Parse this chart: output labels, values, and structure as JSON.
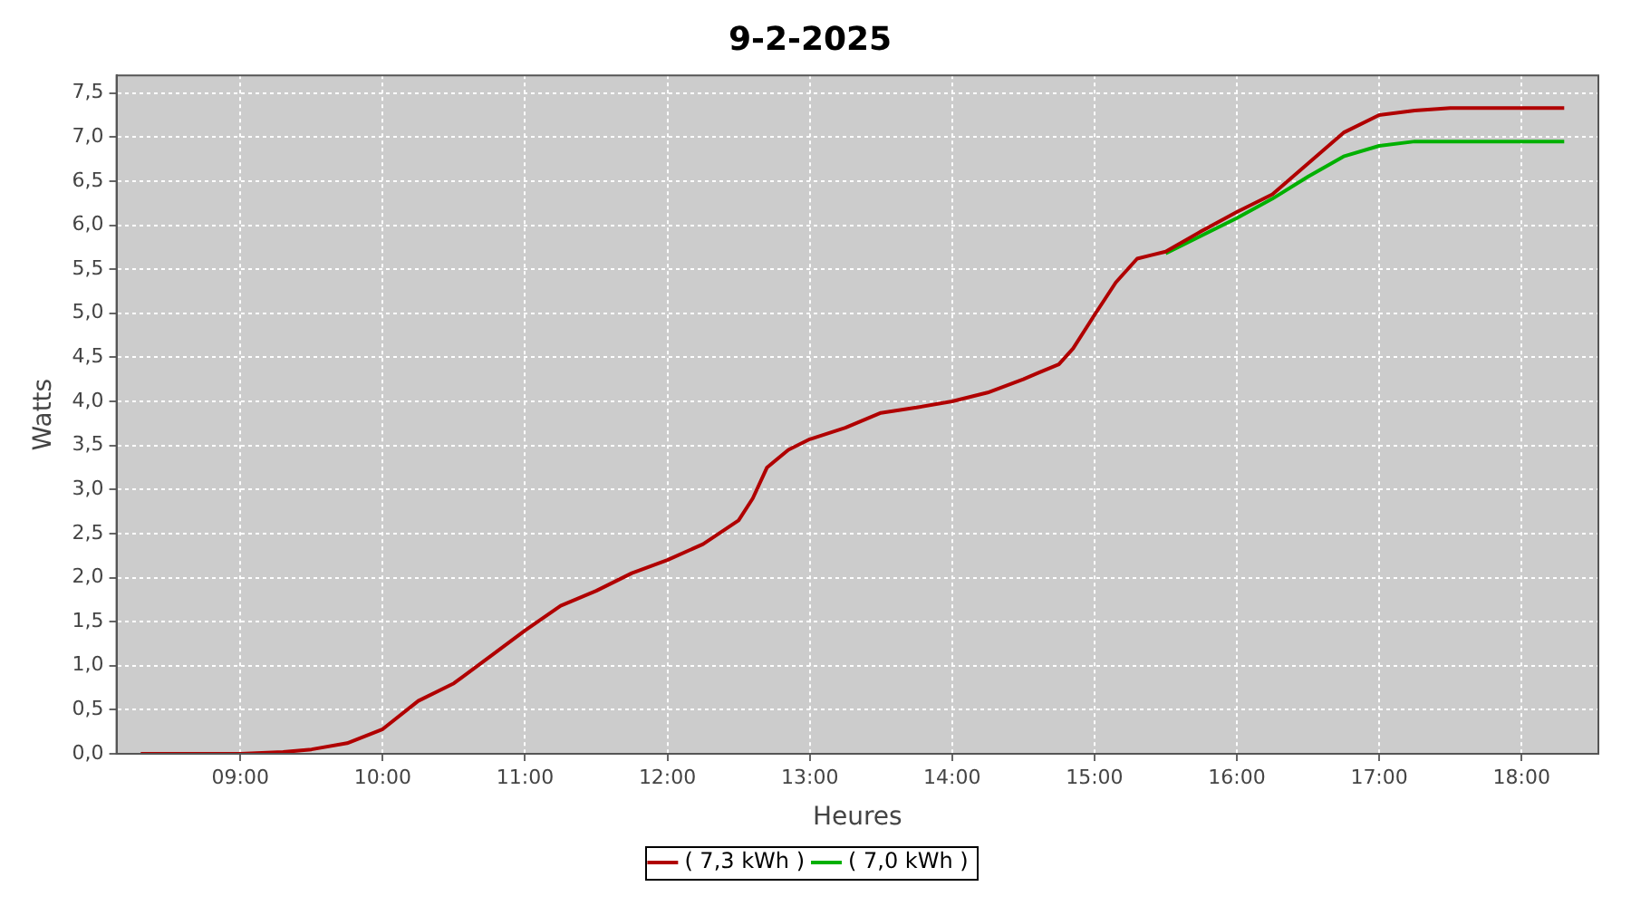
{
  "chart_data": {
    "type": "line",
    "title": "9-2-2025",
    "xlabel": "Heures",
    "ylabel": "Watts",
    "xlim": [
      8.13,
      18.54
    ],
    "ylim": [
      0,
      7.7
    ],
    "xticks": [
      {
        "value": 9,
        "label": "09:00"
      },
      {
        "value": 10,
        "label": "10:00"
      },
      {
        "value": 11,
        "label": "11:00"
      },
      {
        "value": 12,
        "label": "12:00"
      },
      {
        "value": 13,
        "label": "13:00"
      },
      {
        "value": 14,
        "label": "14:00"
      },
      {
        "value": 15,
        "label": "15:00"
      },
      {
        "value": 16,
        "label": "16:00"
      },
      {
        "value": 17,
        "label": "17:00"
      },
      {
        "value": 18,
        "label": "18:00"
      }
    ],
    "yticks": [
      {
        "value": 0,
        "label": "0,0"
      },
      {
        "value": 0.5,
        "label": "0,5"
      },
      {
        "value": 1,
        "label": "1,0"
      },
      {
        "value": 1.5,
        "label": "1,5"
      },
      {
        "value": 2,
        "label": "2,0"
      },
      {
        "value": 2.5,
        "label": "2,5"
      },
      {
        "value": 3,
        "label": "3,0"
      },
      {
        "value": 3.5,
        "label": "3,5"
      },
      {
        "value": 4,
        "label": "4,0"
      },
      {
        "value": 4.5,
        "label": "4,5"
      },
      {
        "value": 5,
        "label": "5,0"
      },
      {
        "value": 5.5,
        "label": "5,5"
      },
      {
        "value": 6,
        "label": "6,0"
      },
      {
        "value": 6.5,
        "label": "6,5"
      },
      {
        "value": 7,
        "label": "7,0"
      },
      {
        "value": 7.5,
        "label": "7,5"
      }
    ],
    "grid": true,
    "legend": "bottom",
    "marker": "none",
    "line_style": "solid",
    "series": [
      {
        "name": "( 7,3 kWh )",
        "color": "#b00000",
        "x": [
          8.3,
          9.0,
          9.3,
          9.5,
          9.75,
          10.0,
          10.25,
          10.5,
          10.75,
          11.0,
          11.25,
          11.5,
          11.75,
          12.0,
          12.25,
          12.5,
          12.6,
          12.7,
          12.85,
          13.0,
          13.25,
          13.5,
          13.75,
          14.0,
          14.25,
          14.5,
          14.6,
          14.75,
          14.85,
          15.0,
          15.15,
          15.3,
          15.5,
          15.75,
          16.0,
          16.25,
          16.5,
          16.75,
          17.0,
          17.25,
          17.5,
          18.0,
          18.3
        ],
        "values": [
          0,
          0,
          0.02,
          0.05,
          0.12,
          0.28,
          0.6,
          0.8,
          1.1,
          1.4,
          1.68,
          1.85,
          2.05,
          2.2,
          2.38,
          2.65,
          2.9,
          3.25,
          3.45,
          3.57,
          3.7,
          3.87,
          3.93,
          4.0,
          4.1,
          4.25,
          4.32,
          4.42,
          4.6,
          4.98,
          5.35,
          5.62,
          5.7,
          5.93,
          6.15,
          6.35,
          6.7,
          7.05,
          7.25,
          7.3,
          7.33,
          7.33,
          7.33
        ]
      },
      {
        "name": "( 7,0 kWh )",
        "color": "#00b000",
        "x": [
          15.5,
          15.75,
          16.0,
          16.25,
          16.5,
          16.75,
          17.0,
          17.25,
          17.5,
          18.0,
          18.3
        ],
        "values": [
          5.68,
          5.88,
          6.08,
          6.3,
          6.55,
          6.78,
          6.9,
          6.95,
          6.95,
          6.95,
          6.95
        ]
      }
    ]
  }
}
